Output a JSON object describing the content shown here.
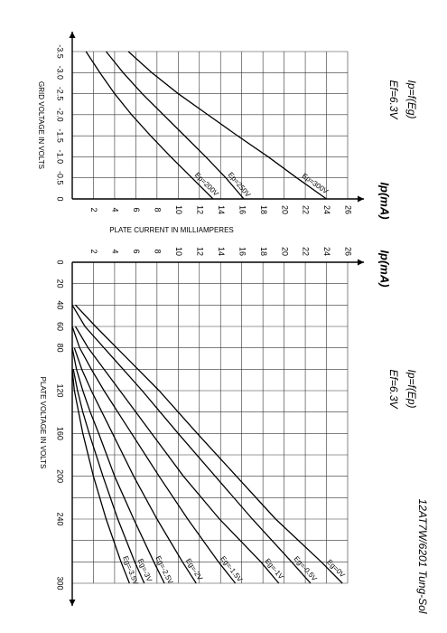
{
  "title": "12AT7W/6201 Tung-Sol",
  "chart_data": [
    {
      "type": "line",
      "title": "Ip=f(Eg)",
      "subtitle": "Ef=6.3V",
      "x_label": "GRID VOLTAGE IN VOLTS",
      "y_label": "Ip(mA)",
      "y_caption": "PLATE CURRENT IN MILLIAMPERES",
      "x": [
        -3.5,
        -3,
        -2.5,
        -2,
        -1.5,
        -1,
        -0.5,
        0
      ],
      "series": [
        {
          "name": "Ep=200V",
          "color": "#000000",
          "values": [
            1.3,
            2.6,
            4,
            5.6,
            7.4,
            9.3,
            11.3,
            13.3
          ]
        },
        {
          "name": "Ep=250V",
          "color": "#000000",
          "values": [
            3.2,
            4.8,
            6.6,
            8.6,
            10.6,
            12.6,
            14.5,
            16.2
          ]
        },
        {
          "name": "Ep=300V",
          "color": "#000000",
          "values": [
            5.3,
            7.5,
            10,
            12.8,
            15.6,
            18.5,
            21.2,
            24
          ]
        }
      ],
      "xlim": [
        -3.5,
        0
      ],
      "xticks": [
        -3.5,
        {
          "value": -3,
          "label": "-3.0"
        },
        -2.5,
        {
          "value": -2,
          "label": "-2.0"
        },
        -1.5,
        {
          "value": -1,
          "label": "-1.0"
        },
        -0.5,
        0
      ],
      "ylim": [
        0,
        26
      ],
      "yticks": [
        2,
        4,
        6,
        8,
        10,
        12,
        14,
        16,
        18,
        20,
        22,
        24,
        26
      ],
      "grid": true
    },
    {
      "type": "line",
      "title": "Ip=f(Ep)",
      "subtitle": "Ef=6.3V",
      "x_label": "PLATE VOLTAGE IN VOLTS",
      "y_label": "Ip(mA)",
      "x": [
        40,
        60,
        80,
        100,
        120,
        140,
        160,
        200,
        240,
        280,
        300
      ],
      "series": [
        {
          "name": "Eg=0V",
          "color": "#000000",
          "values": [
            0.3,
            2.2,
            4.2,
            6.2,
            8.2,
            10,
            11.8,
            15.5,
            19.2,
            23.5,
            25.5
          ]
        },
        {
          "name": "Eg=-0.5V",
          "color": "#000000",
          "values": [
            0,
            1.2,
            3,
            4.8,
            6.6,
            8.3,
            10,
            13.5,
            17,
            20.7,
            22.5
          ]
        },
        {
          "name": "Eg=-1V",
          "color": "#000000",
          "values": [
            null,
            0.3,
            1.5,
            3,
            4.5,
            6,
            7.5,
            10.5,
            13.9,
            17.8,
            19.5
          ]
        },
        {
          "name": "Eg=-1.5V",
          "color": "#000000",
          "values": [
            null,
            0,
            0.7,
            1.8,
            3,
            4.3,
            5.6,
            8.2,
            10.9,
            13.8,
            15.4
          ]
        },
        {
          "name": "Eg=-2V",
          "color": "#000000",
          "values": [
            null,
            null,
            0.2,
            0.9,
            1.8,
            2.8,
            3.8,
            5.8,
            8,
            10.4,
            11.7
          ]
        },
        {
          "name": "Eg=-2.5V",
          "color": "#000000",
          "values": [
            null,
            null,
            0,
            0.4,
            1,
            1.7,
            2.5,
            4,
            5.8,
            7.7,
            8.7
          ]
        },
        {
          "name": "Eg=-3V",
          "color": "#000000",
          "values": [
            null,
            null,
            null,
            0.1,
            0.5,
            1,
            1.6,
            2.9,
            4.3,
            5.9,
            6.8
          ]
        },
        {
          "name": "Eg=-3.5V",
          "color": "#000000",
          "values": [
            null,
            null,
            null,
            0,
            0.2,
            0.6,
            1,
            2,
            3.2,
            4.6,
            5.4
          ]
        }
      ],
      "xlim": [
        0,
        300
      ],
      "xticks": [
        0,
        20,
        40,
        60,
        80,
        120,
        160,
        200,
        240,
        300
      ],
      "xgrid": [
        100,
        140,
        180,
        220,
        260,
        280
      ],
      "ylim": [
        0,
        26
      ],
      "yticks": [
        2,
        4,
        6,
        8,
        10,
        12,
        14,
        16,
        18,
        20,
        22,
        24,
        26
      ],
      "grid": true
    }
  ]
}
